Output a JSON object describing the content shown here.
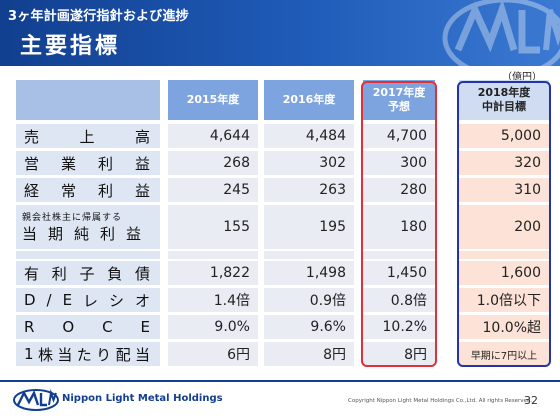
{
  "header": {
    "subtitle": "3ヶ年計画遂行指針および進捗",
    "title": "主要指標"
  },
  "unit": "（億円）",
  "columns": [
    {
      "label_line1": "2015年度",
      "label_line2": ""
    },
    {
      "label_line1": "2016年度",
      "label_line2": ""
    },
    {
      "label_line1": "2017年度",
      "label_line2": "予想"
    },
    {
      "label_line1": "2018年度",
      "label_line2": "中計目標"
    }
  ],
  "rows": [
    {
      "label": "売上高",
      "chars": [
        "売",
        "上",
        "高"
      ],
      "values": [
        "4,644",
        "4,484",
        "4,700",
        "5,000"
      ]
    },
    {
      "label": "営業利益",
      "chars": [
        "営",
        "業",
        "利",
        "益"
      ],
      "values": [
        "268",
        "302",
        "300",
        "320"
      ]
    },
    {
      "label": "経常利益",
      "chars": [
        "経",
        "常",
        "利",
        "益"
      ],
      "values": [
        "245",
        "263",
        "280",
        "310"
      ]
    },
    {
      "label_small": "親会社株主に帰属する",
      "label_big": "当期純利益",
      "values": [
        "155",
        "195",
        "180",
        "200"
      ]
    },
    {
      "label": "有利子負債",
      "chars": [
        "有",
        "利",
        "子",
        "負",
        "債"
      ],
      "values": [
        "1,822",
        "1,498",
        "1,450",
        "1,600"
      ]
    },
    {
      "label": "D/Eレシオ",
      "chars": [
        "D",
        "/",
        "E",
        "レ",
        "シ",
        "オ"
      ],
      "values": [
        "1.4倍",
        "0.9倍",
        "0.8倍",
        "1.0倍以下"
      ]
    },
    {
      "label": "ROCE",
      "chars": [
        "R",
        "O",
        "C",
        "E"
      ],
      "values": [
        "9.0%",
        "9.6%",
        "10.2%",
        "10.0%超"
      ]
    },
    {
      "label": "1株当たり配当",
      "chars": [
        "1",
        "株",
        "当",
        "た",
        "り",
        "配",
        "当"
      ],
      "values": [
        "6円",
        "8円",
        "8円",
        "早期に7円以上"
      ]
    }
  ],
  "footer": {
    "brand": "Nippon Light Metal Holdings",
    "copyright": "Copyright Nippon Light Metal Holdings Co.,Ltd. All rights Reserved.",
    "page": "32"
  },
  "colors": {
    "header_blue": "#1f5cb9",
    "highlight_red": "#e0303a",
    "highlight_blue": "#2433a8",
    "target_fill": "#fde3d7"
  }
}
